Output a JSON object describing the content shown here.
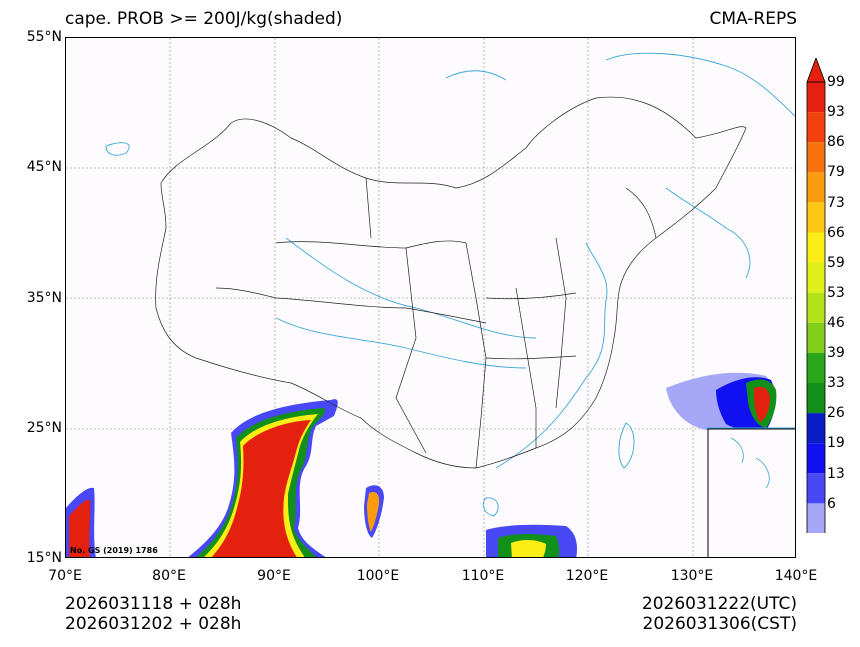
{
  "title": {
    "left": "cape. PROB >= 200J/kg(shaded)",
    "right": "CMA-REPS"
  },
  "axes": {
    "lat_labels": [
      "55°N",
      "45°N",
      "35°N",
      "25°N",
      "15°N"
    ],
    "lon_labels": [
      "70°E",
      "80°E",
      "90°E",
      "100°E",
      "110°E",
      "120°E",
      "130°E",
      "140°E"
    ]
  },
  "map_note": "No. GS (2019) 1786",
  "colorbar": {
    "labels": [
      "99",
      "93",
      "86",
      "79",
      "73",
      "66",
      "59",
      "53",
      "46",
      "39",
      "33",
      "26",
      "19",
      "13",
      "6"
    ],
    "colors": [
      "#e4200e",
      "#f3420f",
      "#f7710d",
      "#fb9c0e",
      "#fcc714",
      "#fbee16",
      "#dff119",
      "#b3e21b",
      "#83cd1b",
      "#2ba71b",
      "#12901a",
      "#0a1ec8",
      "#1010f0",
      "#4848f6",
      "#a7a7f7"
    ],
    "top_color": "#e4200e"
  },
  "bottom": {
    "left_line1": "2026031118  +  028h",
    "left_line2": "2026031202  +  028h",
    "right_line1": "2026031222(UTC)",
    "right_line2": "2026031306(CST)"
  }
}
